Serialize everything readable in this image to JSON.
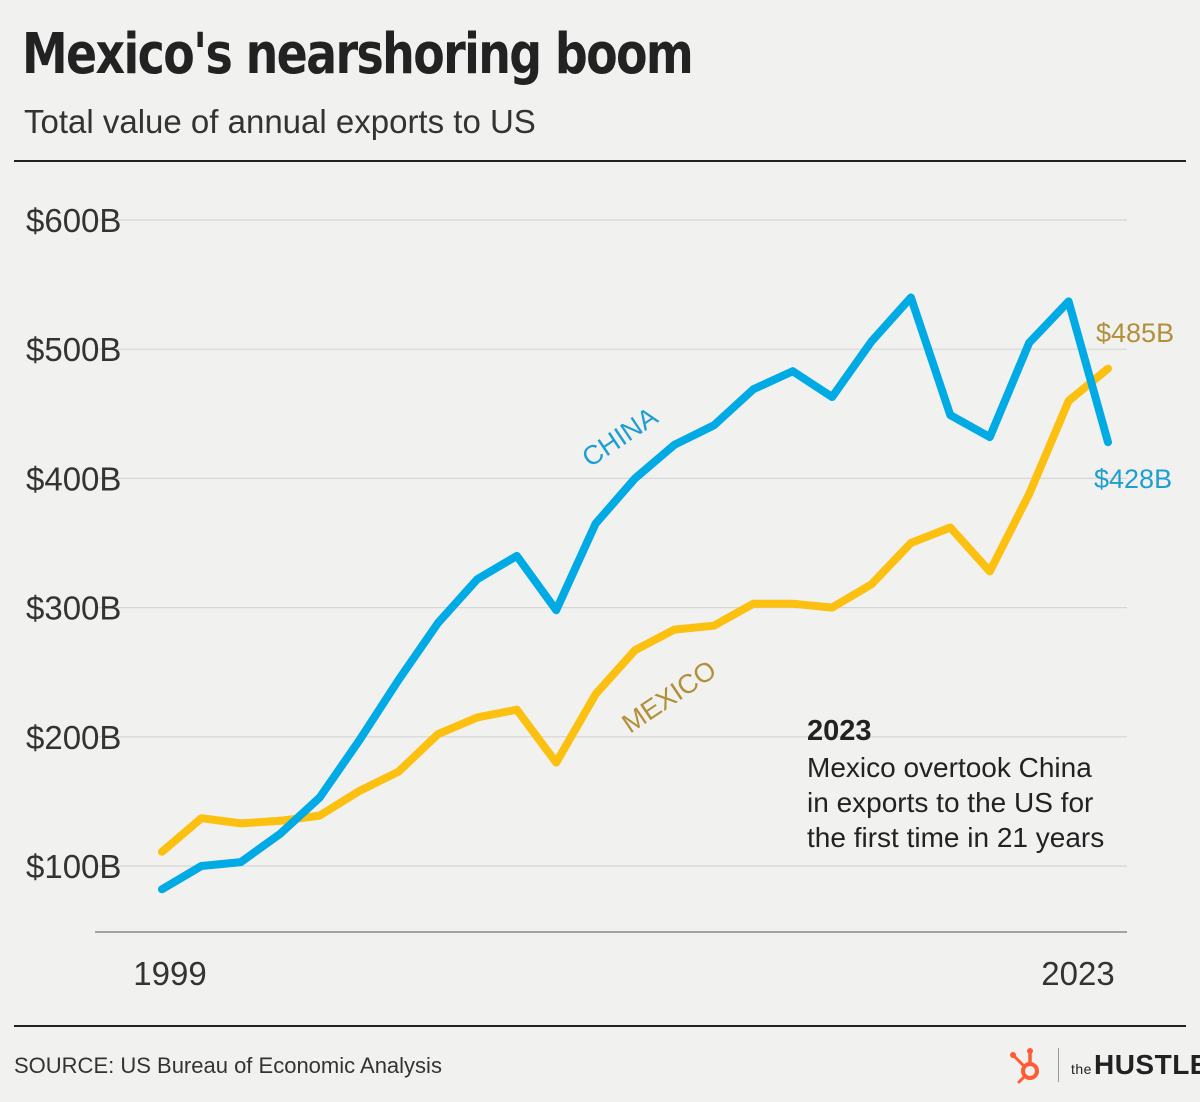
{
  "header": {
    "title": "Mexico's nearshoring boom",
    "subtitle": "Total value of annual exports to US"
  },
  "footer": {
    "source": "SOURCE: US Bureau of Economic Analysis",
    "brand_the": "the",
    "brand_name": "HUSTLE"
  },
  "colors": {
    "china": "#00aae4",
    "mexico": "#fcc010",
    "mexico_label": "#b2903a",
    "china_label": "#1e9fd2",
    "grid": "#d6d6d6",
    "axis": "#888888",
    "logo": "#ff5c35"
  },
  "chart_data": {
    "type": "line",
    "x": [
      1999,
      2000,
      2001,
      2002,
      2003,
      2004,
      2005,
      2006,
      2007,
      2008,
      2009,
      2010,
      2011,
      2012,
      2013,
      2014,
      2015,
      2016,
      2017,
      2018,
      2019,
      2020,
      2021,
      2022,
      2023
    ],
    "x_tick_labels": [
      "1999",
      "2023"
    ],
    "y_tick_labels": [
      "$100B",
      "$200B",
      "$300B",
      "$400B",
      "$500B",
      "$600B"
    ],
    "y_ticks": [
      100,
      200,
      300,
      400,
      500,
      600
    ],
    "ylim": [
      50,
      600
    ],
    "grid": true,
    "series": [
      {
        "name": "CHINA",
        "values": [
          82,
          100,
          103,
          125,
          153,
          197,
          244,
          288,
          322,
          340,
          298,
          365,
          400,
          426,
          441,
          469,
          483,
          463,
          506,
          540,
          449,
          432,
          505,
          537,
          428
        ],
        "end_label": "$428B"
      },
      {
        "name": "MEXICO",
        "values": [
          111,
          137,
          133,
          135,
          139,
          158,
          173,
          202,
          215,
          221,
          180,
          233,
          267,
          283,
          286,
          303,
          303,
          300,
          318,
          350,
          362,
          328,
          388,
          460,
          485
        ],
        "end_label": "$485B"
      }
    ],
    "annotation": {
      "heading": "2023",
      "lines": [
        "Mexico overtook China",
        "in exports to the US for",
        "the first time in 21 years"
      ]
    }
  }
}
